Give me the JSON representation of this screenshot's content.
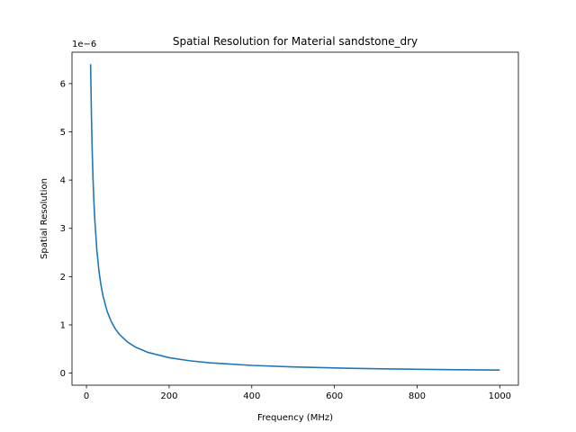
{
  "chart_data": {
    "type": "line",
    "title": "Spatial Resolution for Material sandstone_dry",
    "xlabel": "Frequency (MHz)",
    "ylabel": "Spatial Resolution",
    "y_offset_label": "1e−6",
    "y_scale_factor": 1e-06,
    "xlim": [
      -35,
      1045
    ],
    "ylim": [
      -2.5e-07,
      6.65e-06
    ],
    "x_ticks": [
      0,
      200,
      400,
      600,
      800,
      1000
    ],
    "x_tick_labels": [
      "0",
      "200",
      "400",
      "600",
      "800",
      "1000"
    ],
    "y_ticks": [
      0,
      1e-06,
      2e-06,
      3e-06,
      4e-06,
      5e-06,
      6e-06
    ],
    "y_tick_labels": [
      "0",
      "1",
      "2",
      "3",
      "4",
      "5",
      "6"
    ],
    "grid": false,
    "series": [
      {
        "color": "#1f77b4",
        "x": [
          10,
          12,
          14,
          16,
          18,
          20,
          25,
          30,
          35,
          40,
          50,
          60,
          70,
          80,
          100,
          120,
          150,
          200,
          250,
          300,
          400,
          500,
          600,
          700,
          800,
          900,
          1000
        ],
        "y": [
          6.4e-06,
          5.333e-06,
          4.571e-06,
          4e-06,
          3.556e-06,
          3.2e-06,
          2.56e-06,
          2.133e-06,
          1.829e-06,
          1.6e-06,
          1.28e-06,
          1.067e-06,
          9.14e-07,
          8e-07,
          6.4e-07,
          5.33e-07,
          4.27e-07,
          3.2e-07,
          2.56e-07,
          2.13e-07,
          1.6e-07,
          1.28e-07,
          1.07e-07,
          9.1e-08,
          8e-08,
          7.1e-08,
          6.4e-08
        ]
      }
    ]
  }
}
